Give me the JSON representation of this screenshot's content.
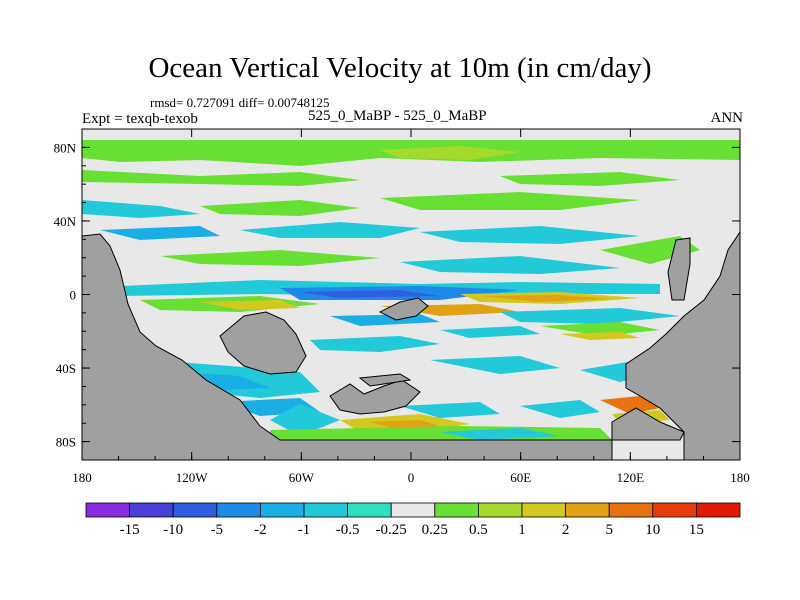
{
  "chart_data": {
    "type": "heatmap",
    "title": "Ocean Vertical Velocity at 10m (in cm/day)",
    "stats_text": "rmsd= 0.727091 diff= 0.00748125",
    "left_label": "Expt = texqb-texob",
    "center_label": "525_0_MaBP - 525_0_MaBP",
    "right_label": "ANN",
    "x_ticks": [
      "180",
      "120W",
      "60W",
      "0",
      "60E",
      "120E",
      "180"
    ],
    "x_values": [
      -180,
      -120,
      -60,
      0,
      60,
      120,
      180
    ],
    "y_ticks": [
      "80N",
      "40N",
      "0",
      "40S",
      "80S"
    ],
    "y_values": [
      80,
      40,
      0,
      -40,
      -80
    ],
    "xlim": [
      -180,
      180
    ],
    "ylim": [
      -90,
      90
    ],
    "colorbar": {
      "labels": [
        "-15",
        "-10",
        "-5",
        "-2",
        "-1",
        "-0.5",
        "-0.25",
        "0.25",
        "0.5",
        "1",
        "2",
        "5",
        "10",
        "15"
      ],
      "colors": [
        "#8a2be2",
        "#4a3fd6",
        "#2f5fe0",
        "#1e8ae8",
        "#1aaee6",
        "#22c9d8",
        "#2ee0c0",
        "#e8e8e8",
        "#68e033",
        "#a5d92a",
        "#d2c81e",
        "#e0a214",
        "#e8720e",
        "#e83c0a",
        "#e01a04"
      ]
    },
    "land_color": "#a0a0a0",
    "ocean_neutral_color": "#e8e8e8"
  }
}
